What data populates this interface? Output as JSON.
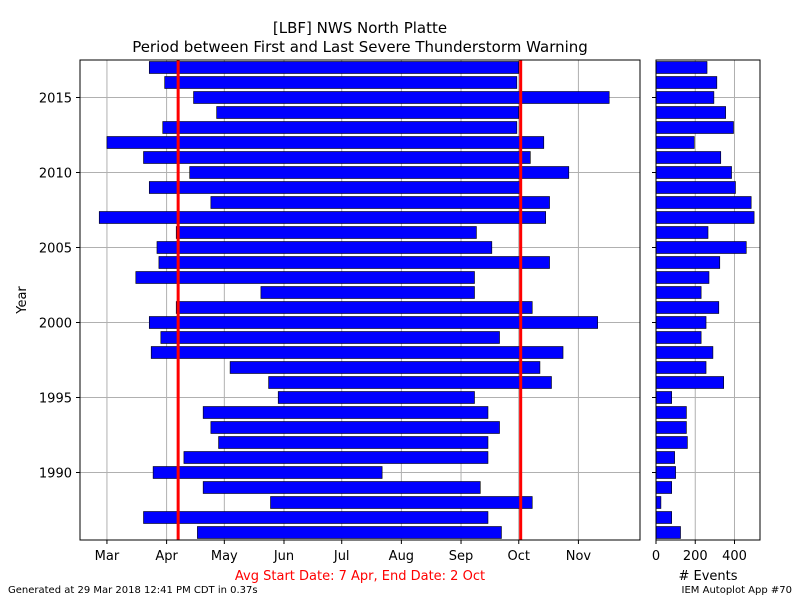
{
  "header": {
    "title": "[LBF] NWS North Platte",
    "subtitle": "Period between First and Last Severe Thunderstorm Warning"
  },
  "footer": {
    "generated": "Generated at 29 Mar 2018 12:41 PM CDT in 0.37s",
    "app": "IEM Autoplot App #70"
  },
  "colors": {
    "bar": "#0000ff",
    "avg_line": "#ff0000",
    "grid": "#b0b0b0",
    "avg_label": "#ff0000"
  },
  "chart_data": [
    {
      "type": "bar",
      "orientation": "horizontal-range",
      "ylabel": "Year",
      "xlabel": "Avg Start Date: 7 Apr, End Date: 2 Oct",
      "x_tick_labels": [
        "Mar",
        "Apr",
        "May",
        "Jun",
        "Jul",
        "Aug",
        "Sep",
        "Oct",
        "Nov"
      ],
      "x_tick_days": [
        60,
        91,
        121,
        152,
        182,
        213,
        244,
        274,
        305
      ],
      "xlim_days": [
        46,
        337
      ],
      "y_ticks": [
        1990,
        1995,
        2000,
        2005,
        2010,
        2015
      ],
      "ylim": [
        1985.5,
        2017.5
      ],
      "grid": true,
      "avg_start_day": 97,
      "avg_end_day": 275,
      "years": [
        1986,
        1987,
        1988,
        1989,
        1990,
        1991,
        1992,
        1993,
        1994,
        1995,
        1996,
        1997,
        1998,
        1999,
        2000,
        2001,
        2002,
        2003,
        2004,
        2005,
        2006,
        2007,
        2008,
        2009,
        2010,
        2011,
        2012,
        2013,
        2014,
        2015,
        2016,
        2017
      ],
      "start_days": [
        107,
        79,
        145,
        110,
        84,
        100,
        118,
        114,
        110,
        149,
        144,
        124,
        83,
        88,
        82,
        96,
        140,
        75,
        87,
        86,
        96,
        56,
        114,
        82,
        103,
        79,
        60,
        89,
        117,
        105,
        90,
        82
      ],
      "end_days": [
        265,
        258,
        281,
        254,
        203,
        258,
        258,
        264,
        258,
        251,
        291,
        285,
        297,
        264,
        315,
        281,
        251,
        251,
        290,
        260,
        252,
        288,
        290,
        275,
        300,
        280,
        287,
        273,
        274,
        321,
        273,
        274
      ]
    },
    {
      "type": "bar",
      "orientation": "horizontal",
      "xlabel": "# Events",
      "x_ticks": [
        0,
        200,
        400
      ],
      "xlim": [
        0,
        530
      ],
      "years": [
        1986,
        1987,
        1988,
        1989,
        1990,
        1991,
        1992,
        1993,
        1994,
        1995,
        1996,
        1997,
        1998,
        1999,
        2000,
        2001,
        2002,
        2003,
        2004,
        2005,
        2006,
        2007,
        2008,
        2009,
        2010,
        2011,
        2012,
        2013,
        2014,
        2015,
        2016,
        2017
      ],
      "values": [
        125,
        80,
        25,
        80,
        100,
        95,
        160,
        155,
        155,
        80,
        345,
        255,
        290,
        230,
        255,
        320,
        230,
        270,
        325,
        460,
        265,
        500,
        485,
        405,
        385,
        330,
        195,
        395,
        355,
        295,
        310,
        260
      ]
    }
  ]
}
